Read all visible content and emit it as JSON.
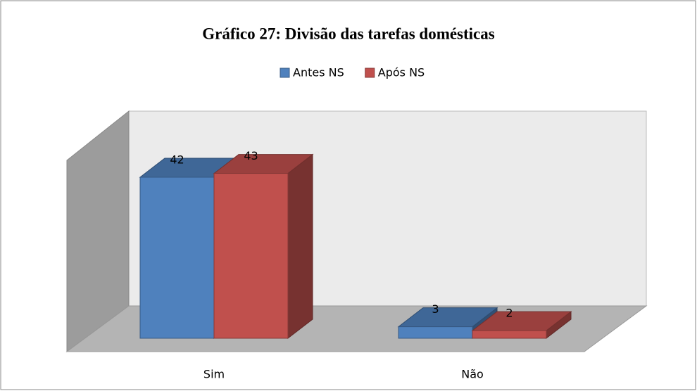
{
  "chart_data": {
    "type": "bar3d",
    "title": "Gráfico 27: Divisão das tarefas domésticas",
    "categories": [
      "Sim",
      "Não"
    ],
    "series": [
      {
        "name": "Antes NS",
        "color": "#4f81bd",
        "values": [
          42,
          3
        ]
      },
      {
        "name": "Após NS",
        "color": "#c0504d",
        "values": [
          43,
          2
        ]
      }
    ],
    "ylim": [
      0,
      50
    ],
    "legend": "top"
  }
}
